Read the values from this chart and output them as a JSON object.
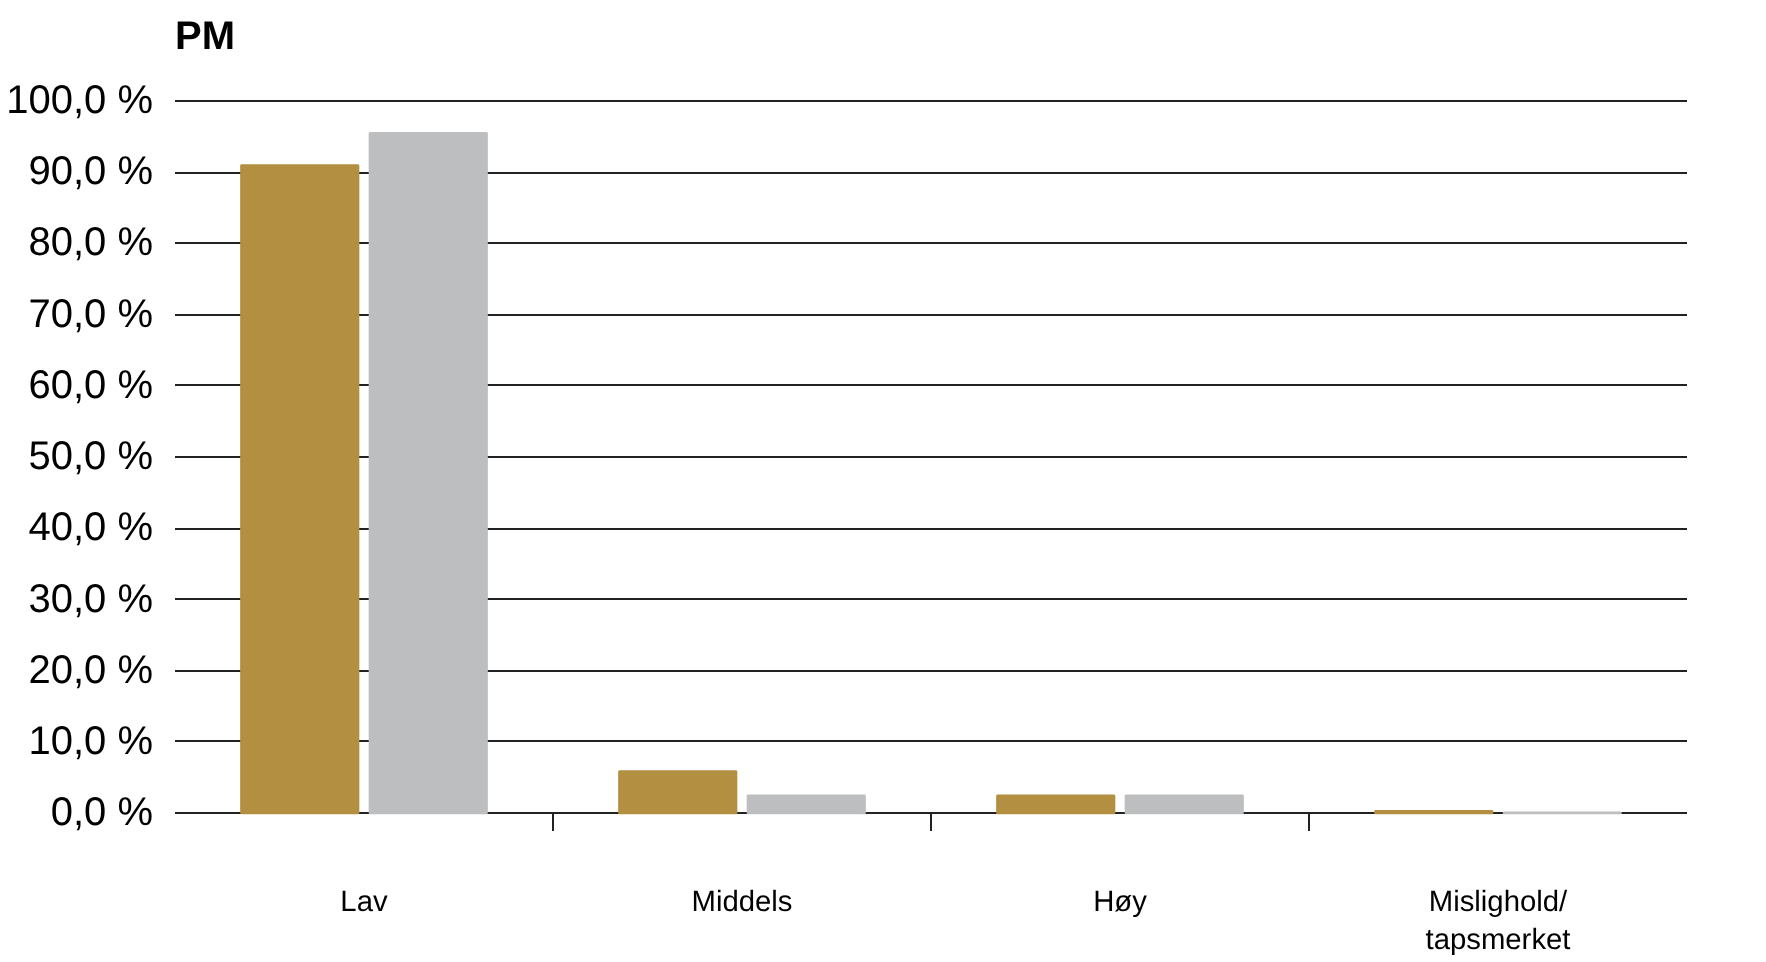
{
  "chart_data": {
    "type": "bar",
    "title": "PM",
    "categories": [
      "Lav",
      "Middels",
      "Høy",
      "Mislighold/\ntapsmerket"
    ],
    "series": [
      {
        "color": "#b38f42",
        "values": [
          91.0,
          5.9,
          2.5,
          0.3
        ]
      },
      {
        "color": "#bdbec0",
        "values": [
          95.5,
          2.5,
          2.5,
          0.1
        ]
      }
    ],
    "ylim": [
      0,
      100
    ],
    "yticks": [
      {
        "value": 0,
        "label": "0,0 %"
      },
      {
        "value": 10,
        "label": "10,0 %"
      },
      {
        "value": 20,
        "label": "20,0 %"
      },
      {
        "value": 30,
        "label": "30,0 %"
      },
      {
        "value": 40,
        "label": "40,0 %"
      },
      {
        "value": 50,
        "label": "50,0 %"
      },
      {
        "value": 60,
        "label": "60,0 %"
      },
      {
        "value": 70,
        "label": "70,0 %"
      },
      {
        "value": 80,
        "label": "80,0 %"
      },
      {
        "value": 90,
        "label": "90,0 %"
      },
      {
        "value": 100,
        "label": "100,0 %"
      }
    ],
    "grid": "y"
  }
}
